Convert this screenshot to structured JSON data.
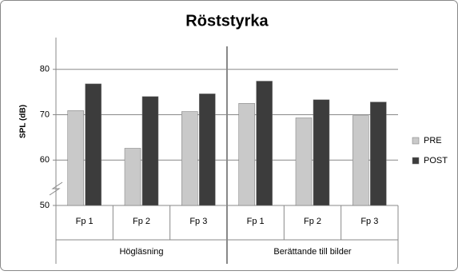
{
  "chart_data": {
    "type": "bar",
    "title": "Röststyrka",
    "y_label": "SPL (dB)",
    "categories": [
      "Fp 1",
      "Fp 2",
      "Fp 3",
      "Fp 1",
      "Fp 2",
      "Fp 3"
    ],
    "groups": [
      "Högläsning",
      "Berättande till bilder"
    ],
    "series": [
      {
        "name": "PRE",
        "color": "#c9c9c9",
        "values": [
          70.9,
          62.6,
          70.7,
          72.5,
          69.3,
          69.8
        ]
      },
      {
        "name": "POST",
        "color": "#3c3c3c",
        "values": [
          76.8,
          74.0,
          74.6,
          77.4,
          73.3,
          72.8
        ]
      }
    ],
    "ylim": [
      50,
      87
    ],
    "yticks": [
      50,
      60,
      70,
      80
    ],
    "grid": true,
    "legend": "right"
  }
}
